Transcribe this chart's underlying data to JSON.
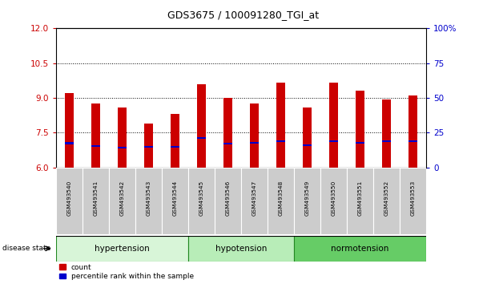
{
  "title": "GDS3675 / 100091280_TGI_at",
  "samples": [
    "GSM493540",
    "GSM493541",
    "GSM493542",
    "GSM493543",
    "GSM493544",
    "GSM493545",
    "GSM493546",
    "GSM493547",
    "GSM493548",
    "GSM493549",
    "GSM493550",
    "GSM493551",
    "GSM493552",
    "GSM493553"
  ],
  "count_values": [
    9.2,
    8.75,
    8.6,
    7.9,
    8.3,
    9.6,
    9.0,
    8.75,
    9.65,
    8.6,
    9.65,
    9.3,
    8.95,
    9.1
  ],
  "percentile_values": [
    7.05,
    6.92,
    6.85,
    6.88,
    6.88,
    7.28,
    7.02,
    7.08,
    7.12,
    6.98,
    7.12,
    7.08,
    7.12,
    7.12
  ],
  "bar_bottom": 6.0,
  "ylim": [
    6.0,
    12.0
  ],
  "y_left_ticks": [
    6,
    7.5,
    9,
    10.5,
    12
  ],
  "y_right_ticks": [
    0,
    25,
    50,
    75,
    100
  ],
  "disease_groups": [
    {
      "label": "hypertension",
      "start": 0,
      "end": 5,
      "color": "#d8f5d8"
    },
    {
      "label": "hypotension",
      "start": 5,
      "end": 9,
      "color": "#b8edB8"
    },
    {
      "label": "normotension",
      "start": 9,
      "end": 14,
      "color": "#66cc66"
    }
  ],
  "bar_color": "#cc0000",
  "percentile_color": "#0000cc",
  "tick_label_color_left": "#cc0000",
  "tick_label_color_right": "#0000cc",
  "bar_width": 0.35,
  "title_fontsize": 9
}
